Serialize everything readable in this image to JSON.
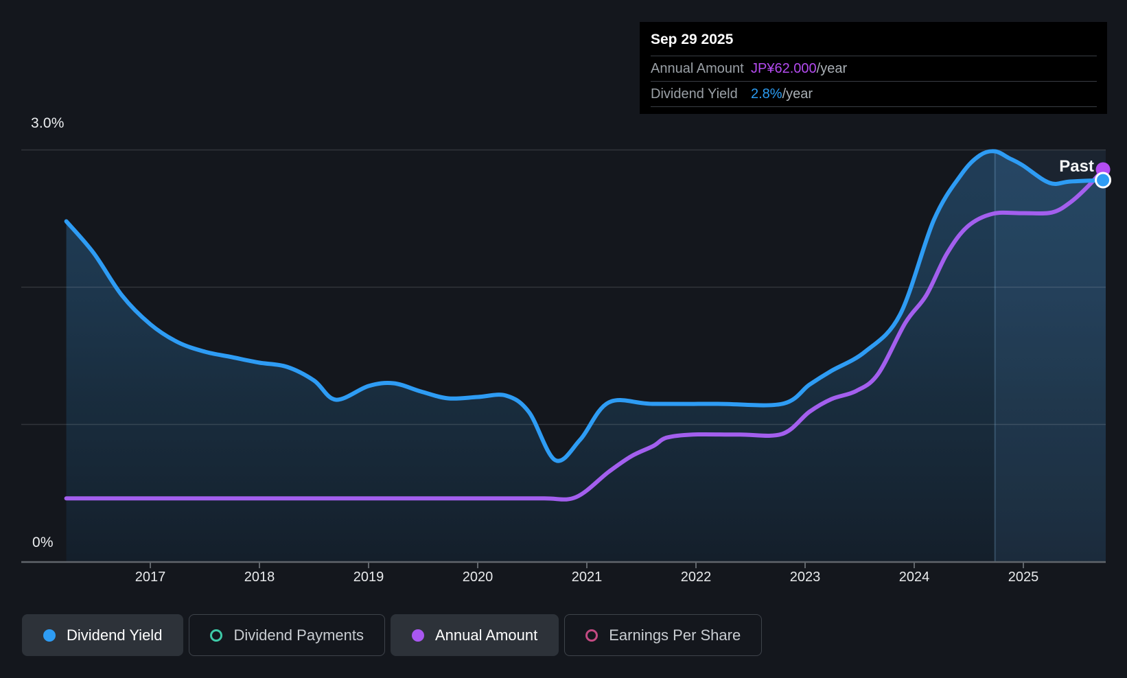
{
  "tooltip": {
    "date": "Sep 29 2025",
    "rows": [
      {
        "label": "Annual Amount",
        "value": "JP¥62.000",
        "suffix": "/year",
        "value_color": "#b44bf0"
      },
      {
        "label": "Dividend Yield",
        "value": "2.8%",
        "suffix": "/year",
        "value_color": "#2b9cf2"
      }
    ]
  },
  "axis": {
    "y_top_label": "3.0%",
    "y_bottom_label": "0%"
  },
  "past_label": "Past",
  "legend": [
    {
      "label": "Dividend Yield",
      "marker": "dot",
      "color": "#2e9cf4",
      "active": true
    },
    {
      "label": "Dividend Payments",
      "marker": "ring",
      "color": "#3ec9a7",
      "active": false
    },
    {
      "label": "Annual Amount",
      "marker": "dot",
      "color": "#a957f0",
      "active": true
    },
    {
      "label": "Earnings Per Share",
      "marker": "ring",
      "color": "#c34a82",
      "active": false
    }
  ],
  "colors": {
    "yield_line": "#2e9cf4",
    "amount_line": "#a35fee",
    "amount_marker": "#b44df2",
    "background": "#14171d",
    "tooltip_bg": "#000000",
    "grid": "rgba(255,255,255,0.13)",
    "axis_line": "#61666c"
  },
  "chart_data": {
    "type": "area",
    "title": "Dividend yield and annual dividend amount history",
    "x_axis": {
      "ticks": [
        2017,
        2018,
        2019,
        2020,
        2021,
        2022,
        2023,
        2024,
        2025
      ],
      "range": [
        2016.23,
        2025.75
      ]
    },
    "y_axis": {
      "unit": "%",
      "range": [
        0,
        3.0
      ],
      "gridlines_pct": [
        1.0,
        2.0,
        3.0
      ],
      "top_label": "3.0%",
      "bottom_label": "0%"
    },
    "past_region_start": 2024.74,
    "series": [
      {
        "name": "Dividend Yield",
        "unit": "%",
        "color": "#2e9cf4",
        "current_value": "2.8%/year",
        "points": [
          [
            2016.23,
            2.48
          ],
          [
            2016.48,
            2.25
          ],
          [
            2016.74,
            1.94
          ],
          [
            2017.0,
            1.73
          ],
          [
            2017.25,
            1.6
          ],
          [
            2017.5,
            1.53
          ],
          [
            2017.75,
            1.49
          ],
          [
            2018.0,
            1.45
          ],
          [
            2018.25,
            1.42
          ],
          [
            2018.5,
            1.32
          ],
          [
            2018.7,
            1.18
          ],
          [
            2019.0,
            1.28
          ],
          [
            2019.23,
            1.3
          ],
          [
            2019.48,
            1.24
          ],
          [
            2019.73,
            1.19
          ],
          [
            2020.0,
            1.2
          ],
          [
            2020.26,
            1.21
          ],
          [
            2020.47,
            1.09
          ],
          [
            2020.71,
            0.74
          ],
          [
            2020.94,
            0.89
          ],
          [
            2021.2,
            1.16
          ],
          [
            2021.6,
            1.15
          ],
          [
            2022.2,
            1.15
          ],
          [
            2022.79,
            1.15
          ],
          [
            2023.04,
            1.29
          ],
          [
            2023.24,
            1.39
          ],
          [
            2023.55,
            1.53
          ],
          [
            2023.87,
            1.8
          ],
          [
            2024.18,
            2.49
          ],
          [
            2024.43,
            2.82
          ],
          [
            2024.6,
            2.96
          ],
          [
            2024.74,
            2.99
          ],
          [
            2024.87,
            2.94
          ],
          [
            2024.99,
            2.89
          ],
          [
            2025.24,
            2.76
          ],
          [
            2025.43,
            2.77
          ],
          [
            2025.73,
            2.78
          ]
        ]
      },
      {
        "name": "Annual Amount",
        "unit": "JP¥/year",
        "color": "#a35fee",
        "current_value": "JP¥62.000/year",
        "points": [
          [
            2016.23,
            10
          ],
          [
            2017.0,
            10
          ],
          [
            2018.0,
            10
          ],
          [
            2019.0,
            10
          ],
          [
            2020.0,
            10
          ],
          [
            2020.6,
            10
          ],
          [
            2020.9,
            10.2
          ],
          [
            2021.2,
            14.2
          ],
          [
            2021.41,
            16.7
          ],
          [
            2021.61,
            18.3
          ],
          [
            2021.73,
            19.6
          ],
          [
            2021.97,
            20.1
          ],
          [
            2022.4,
            20.1
          ],
          [
            2022.79,
            20.2
          ],
          [
            2023.04,
            23.7
          ],
          [
            2023.24,
            25.7
          ],
          [
            2023.47,
            27.0
          ],
          [
            2023.67,
            29.7
          ],
          [
            2023.92,
            37.8
          ],
          [
            2024.11,
            42.1
          ],
          [
            2024.3,
            48.7
          ],
          [
            2024.49,
            53.0
          ],
          [
            2024.72,
            55.0
          ],
          [
            2024.99,
            55.1
          ],
          [
            2025.26,
            55.2
          ],
          [
            2025.43,
            56.8
          ],
          [
            2025.59,
            59.3
          ],
          [
            2025.73,
            62.0
          ]
        ]
      }
    ]
  }
}
